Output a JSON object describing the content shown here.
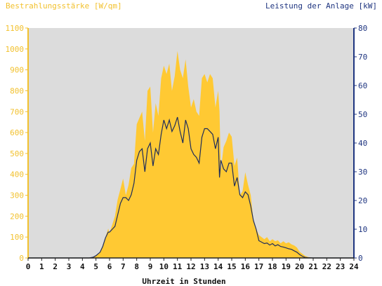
{
  "chart_data": {
    "type": "area",
    "title_left": "Bestrahlungsstärke [W/qm]",
    "title_right": "Leistung der Anlage [kW]",
    "xlabel": "Uhrzeit in Stunden",
    "xlim": [
      0,
      24
    ],
    "x_ticks": [
      "0",
      "1",
      "2",
      "3",
      "4",
      "5",
      "6",
      "7",
      "8",
      "9",
      "10",
      "11",
      "12",
      "13",
      "14",
      "15",
      "16",
      "17",
      "18",
      "19",
      "20",
      "21",
      "22",
      "23",
      "24"
    ],
    "y_left_lim": [
      0,
      1100
    ],
    "y_left_ticks": [
      "0",
      "100",
      "200",
      "300",
      "400",
      "500",
      "600",
      "700",
      "800",
      "900",
      "1000",
      "1100"
    ],
    "y_right_lim": [
      0,
      80
    ],
    "y_right_ticks": [
      "0",
      "10",
      "20",
      "30",
      "40",
      "50",
      "60",
      "70",
      "80"
    ],
    "colors": {
      "plot_background": "#dcdcdc",
      "irradiance_fill": "#ffc933",
      "power_line": "#1f2d5a",
      "left_axis": "#f2c12e",
      "right_axis": "#1f3580"
    },
    "series": [
      {
        "axis": "left",
        "style": "area",
        "x": [
          0,
          4.5,
          4.8,
          5.0,
          5.3,
          5.5,
          5.7,
          5.9,
          6.0,
          6.2,
          6.4,
          6.6,
          6.8,
          7.0,
          7.2,
          7.4,
          7.6,
          7.8,
          8.0,
          8.2,
          8.4,
          8.6,
          8.8,
          9.0,
          9.2,
          9.4,
          9.6,
          9.8,
          10.0,
          10.2,
          10.4,
          10.6,
          10.8,
          11.0,
          11.2,
          11.4,
          11.6,
          11.8,
          12.0,
          12.2,
          12.4,
          12.6,
          12.8,
          13.0,
          13.2,
          13.4,
          13.6,
          13.8,
          14.0,
          14.1,
          14.2,
          14.4,
          14.6,
          14.8,
          15.0,
          15.2,
          15.4,
          15.6,
          15.8,
          16.0,
          16.2,
          16.4,
          16.6,
          16.8,
          17.0,
          17.2,
          17.4,
          17.6,
          17.8,
          18.0,
          18.2,
          18.4,
          18.6,
          18.8,
          19.0,
          19.2,
          19.4,
          19.6,
          19.8,
          20.0,
          20.2,
          20.4,
          20.6,
          21.0,
          24
        ],
        "y": [
          0,
          0,
          5,
          10,
          30,
          60,
          100,
          140,
          120,
          160,
          200,
          280,
          330,
          380,
          300,
          350,
          430,
          450,
          640,
          670,
          700,
          560,
          800,
          820,
          600,
          740,
          680,
          860,
          920,
          880,
          930,
          800,
          870,
          990,
          900,
          860,
          950,
          820,
          720,
          760,
          700,
          680,
          860,
          880,
          840,
          880,
          860,
          720,
          800,
          700,
          420,
          530,
          560,
          600,
          580,
          440,
          480,
          300,
          320,
          410,
          350,
          300,
          180,
          140,
          110,
          100,
          90,
          100,
          80,
          90,
          80,
          85,
          70,
          80,
          70,
          75,
          65,
          60,
          50,
          30,
          20,
          10,
          5,
          0,
          0
        ]
      },
      {
        "axis": "right",
        "style": "line",
        "x": [
          0,
          4.5,
          4.8,
          5.0,
          5.3,
          5.5,
          5.7,
          5.9,
          6.0,
          6.2,
          6.4,
          6.6,
          6.8,
          7.0,
          7.2,
          7.4,
          7.6,
          7.8,
          8.0,
          8.2,
          8.4,
          8.6,
          8.8,
          9.0,
          9.2,
          9.4,
          9.6,
          9.8,
          10.0,
          10.2,
          10.4,
          10.6,
          10.8,
          11.0,
          11.2,
          11.4,
          11.6,
          11.8,
          12.0,
          12.2,
          12.4,
          12.6,
          12.8,
          13.0,
          13.2,
          13.4,
          13.6,
          13.8,
          14.0,
          14.1,
          14.2,
          14.4,
          14.6,
          14.8,
          15.0,
          15.2,
          15.4,
          15.6,
          15.8,
          16.0,
          16.2,
          16.4,
          16.6,
          16.8,
          17.0,
          17.2,
          17.4,
          17.6,
          17.8,
          18.0,
          18.2,
          18.4,
          18.6,
          18.8,
          19.0,
          19.2,
          19.4,
          19.6,
          19.8,
          20.0,
          20.2,
          20.4,
          20.6,
          21.0,
          24
        ],
        "y": [
          0,
          0,
          0.3,
          0.8,
          2,
          4,
          7,
          9,
          9,
          10,
          11,
          15,
          19,
          21,
          21,
          20,
          22,
          26,
          34,
          37,
          38,
          30,
          38,
          40,
          32,
          38,
          36,
          43,
          48,
          45,
          48,
          44,
          46,
          49,
          44,
          40,
          48,
          45,
          38,
          36,
          35,
          33,
          42,
          45,
          45,
          44,
          43,
          38,
          42,
          28,
          34,
          31,
          30,
          33,
          33,
          25,
          28,
          22,
          21,
          23,
          22,
          18,
          13,
          10,
          6,
          5.5,
          5,
          5.2,
          4.5,
          5,
          4.2,
          4.6,
          4,
          3.8,
          3.5,
          3.2,
          3,
          2.5,
          2,
          1.2,
          0.6,
          0.2,
          0.1,
          0,
          0
        ]
      }
    ]
  }
}
